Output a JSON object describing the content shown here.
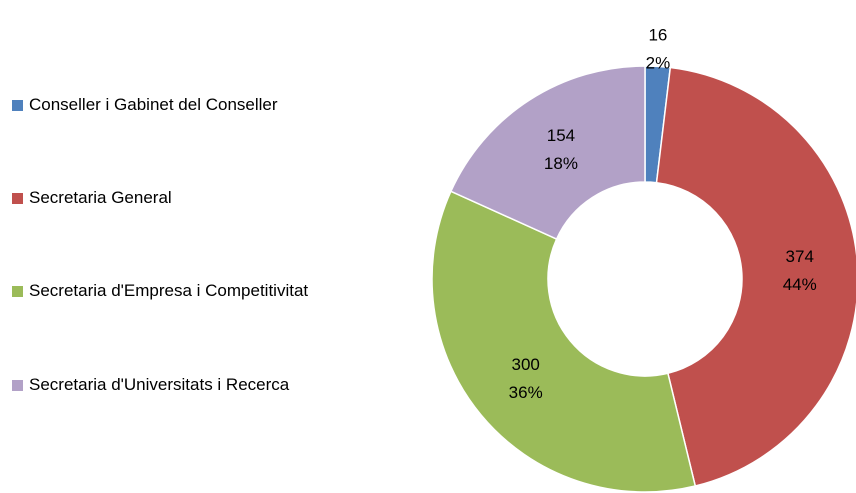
{
  "chart_data": {
    "type": "donut",
    "categories": [
      "Conseller i Gabinet del Conseller",
      "Secretaria General",
      "Secretaria d'Empresa i Competitivitat",
      "Secretaria d'Universitats i Recerca"
    ],
    "values": [
      16,
      374,
      300,
      154
    ],
    "percent_labels": [
      "2%",
      "44%",
      "36%",
      "18%"
    ],
    "colors": [
      "#4f81bd",
      "#c0504d",
      "#9bbb59",
      "#b2a1c7"
    ],
    "legend": "left"
  }
}
